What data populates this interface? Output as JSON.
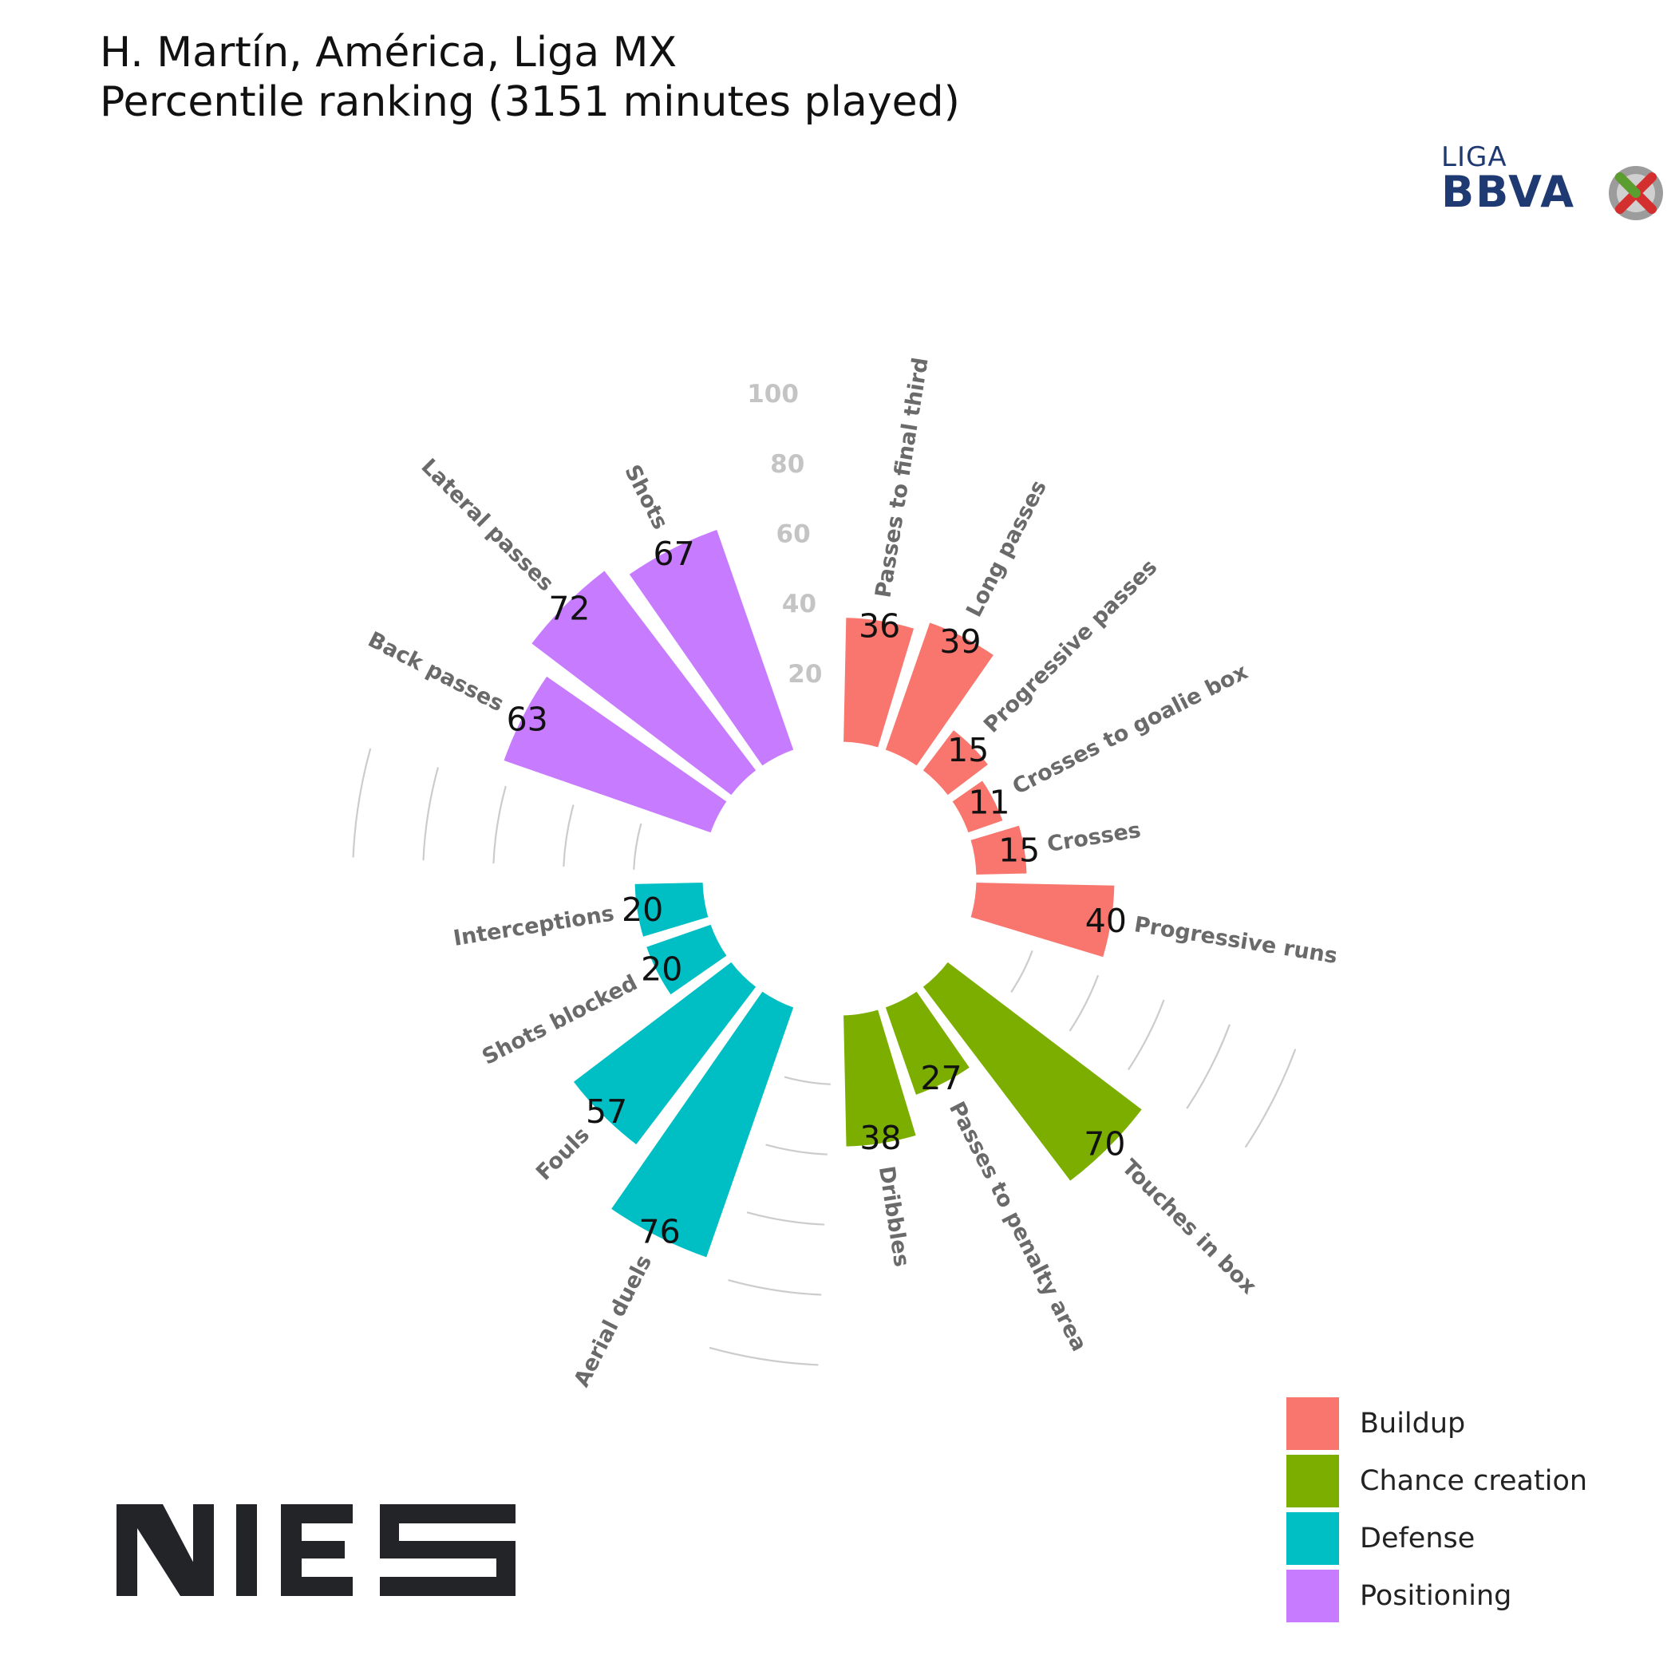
{
  "header": {
    "title_line1": "H. Martín, América, Liga MX",
    "title_line2": "Percentile ranking (3151 minutes played)"
  },
  "logos": {
    "league_small": "LIGA",
    "league_big": "BBVA",
    "brand": "NIES"
  },
  "colors": {
    "Buildup": "#F8766D",
    "Chance creation": "#7CAE00",
    "Defense": "#00BFC4",
    "Positioning": "#C77CFF",
    "label_text": "#6a6a6a",
    "tick_text": "#c4c4c4",
    "grid": "#cccccc"
  },
  "chart_data": {
    "type": "bar",
    "subtype": "polar",
    "title": "Percentile ranking (3151 minutes played)",
    "radial_ticks": [
      20,
      40,
      60,
      80,
      100
    ],
    "ylim": [
      0,
      100
    ],
    "legend": {
      "position": "bottom-right",
      "entries": [
        "Buildup",
        "Chance creation",
        "Defense",
        "Positioning"
      ]
    },
    "bars": [
      {
        "label": "Passes to final third",
        "value": 36,
        "group": "Buildup"
      },
      {
        "label": "Long passes",
        "value": 39,
        "group": "Buildup"
      },
      {
        "label": "Progressive passes",
        "value": 15,
        "group": "Buildup"
      },
      {
        "label": "Crosses to goalie box",
        "value": 11,
        "group": "Buildup"
      },
      {
        "label": "Crosses",
        "value": 15,
        "group": "Buildup"
      },
      {
        "label": "Progressive runs",
        "value": 40,
        "group": "Buildup"
      },
      {
        "label": "Touches in box",
        "value": 70,
        "group": "Chance creation"
      },
      {
        "label": "Passes to penalty area",
        "value": 27,
        "group": "Chance creation"
      },
      {
        "label": "Dribbles",
        "value": 38,
        "group": "Chance creation"
      },
      {
        "label": "Aerial duels",
        "value": 76,
        "group": "Defense"
      },
      {
        "label": "Fouls",
        "value": 57,
        "group": "Defense"
      },
      {
        "label": "Shots blocked",
        "value": 20,
        "group": "Defense"
      },
      {
        "label": "Interceptions",
        "value": 20,
        "group": "Defense"
      },
      {
        "label": "Back passes",
        "value": 63,
        "group": "Positioning"
      },
      {
        "label": "Lateral passes",
        "value": 72,
        "group": "Positioning"
      },
      {
        "label": "Shots",
        "value": 67,
        "group": "Positioning"
      }
    ]
  }
}
